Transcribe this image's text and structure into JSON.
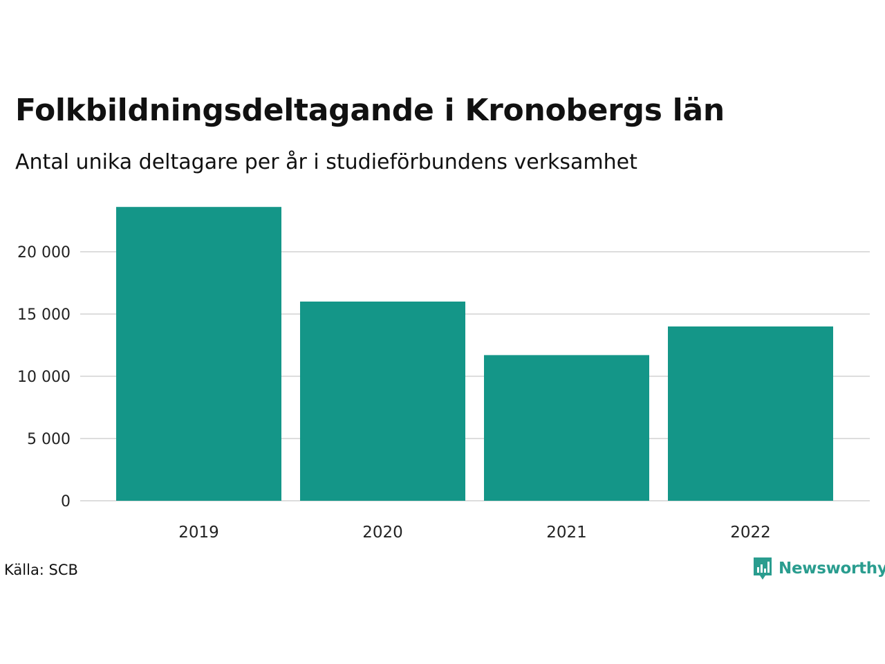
{
  "chart_data": {
    "type": "bar",
    "title": "Folkbildningsdeltagande i Kronobergs län",
    "subtitle": "Antal unika deltagare per år i studieförbundens verksamhet",
    "categories": [
      "2019",
      "2020",
      "2021",
      "2022"
    ],
    "values": [
      23600,
      16000,
      11700,
      14000
    ],
    "yticks": [
      0,
      5000,
      10000,
      15000,
      20000
    ],
    "ytick_labels": [
      "0",
      "5 000",
      "10 000",
      "15 000",
      "20 000"
    ],
    "ylim": [
      0,
      24000
    ],
    "grid": true,
    "legend": "none",
    "bar_color": "#149688",
    "grid_color": "#dddddd"
  },
  "footer": {
    "source": "Källa: SCB",
    "brand": "Newsworthy",
    "brand_color": "#2a9d8f",
    "brand_icon": "newsworthy-logo-icon"
  }
}
